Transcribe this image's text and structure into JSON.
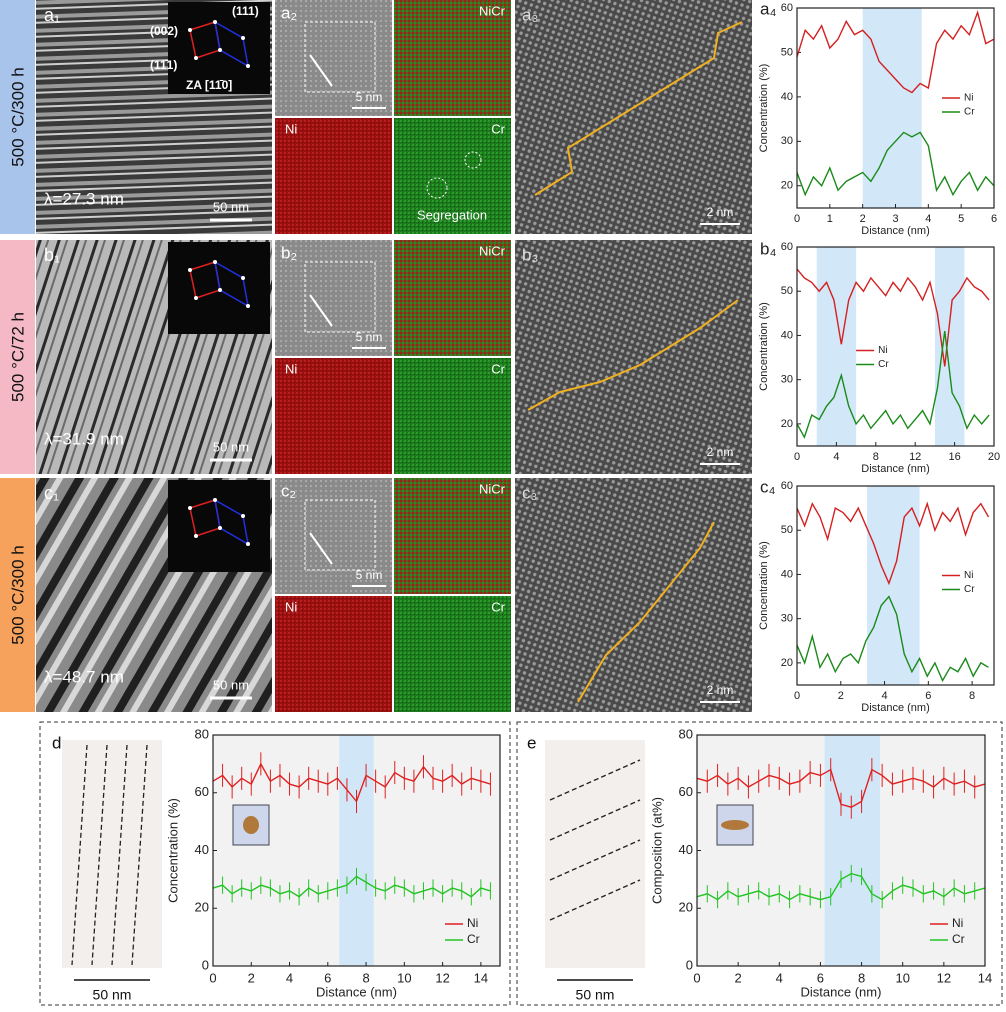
{
  "rows": [
    {
      "condition": "500 °C/300 h",
      "color": "#a9c4ea",
      "p1": {
        "label": "a₁",
        "lambda": "λ=27.3 nm",
        "scale": "50 nm",
        "spots": [
          "(002)",
          "(111)",
          "(11̄1)",
          "ZA [11̄0]"
        ]
      },
      "p2": {
        "label": "a₂",
        "scale": "5 nm",
        "maps": [
          "NiCr",
          "Ni",
          "Cr"
        ],
        "note": "Segregation"
      },
      "p3": {
        "label": "a₃",
        "scale": "2 nm"
      }
    },
    {
      "condition": "500 °C/72 h",
      "color": "#f5b9c6",
      "p1": {
        "label": "b₁",
        "lambda": "λ=31.9 nm",
        "scale": "50 nm"
      },
      "p2": {
        "label": "b₂",
        "scale": "5 nm",
        "maps": [
          "NiCr",
          "Ni",
          "Cr"
        ]
      },
      "p3": {
        "label": "b₃",
        "scale": "2 nm"
      }
    },
    {
      "condition": "500 °C/300 h",
      "color": "#f6a25c",
      "p1": {
        "label": "c₁",
        "lambda": "λ=48.7 nm",
        "scale": "50 nm"
      },
      "p2": {
        "label": "c₂",
        "scale": "5 nm",
        "maps": [
          "NiCr",
          "Ni",
          "Cr"
        ]
      },
      "p3": {
        "label": "c₃",
        "scale": "2 nm"
      }
    }
  ],
  "apt": [
    {
      "label": "d",
      "scale": "50 nm"
    },
    {
      "label": "e",
      "scale": "50 nm"
    }
  ],
  "chart_data": [
    {
      "type": "line",
      "label": "a₄",
      "xlabel": "Distance (nm)",
      "ylabel": "Concentration (%)",
      "xlim": [
        0,
        6
      ],
      "xticks": [
        0,
        1,
        2,
        3,
        4,
        5,
        6
      ],
      "ylim": [
        15,
        60
      ],
      "yticks": [
        20,
        30,
        40,
        50,
        60
      ],
      "shades": [
        [
          2,
          3.8
        ]
      ],
      "legend": "right",
      "x": [
        0,
        0.25,
        0.5,
        0.75,
        1,
        1.25,
        1.5,
        1.75,
        2,
        2.25,
        2.5,
        2.75,
        3,
        3.25,
        3.5,
        3.75,
        4,
        4.25,
        4.5,
        4.75,
        5,
        5.25,
        5.5,
        5.75,
        6
      ],
      "series": [
        {
          "name": "Ni",
          "color": "#d42020",
          "values": [
            49,
            55,
            53,
            56,
            51,
            53,
            57,
            54,
            55,
            53,
            48,
            46,
            44,
            42,
            41,
            43,
            42,
            52,
            55,
            53,
            56,
            54,
            59,
            52,
            53
          ]
        },
        {
          "name": "Cr",
          "color": "#1a8a1a",
          "values": [
            23,
            18,
            22,
            20,
            24,
            19,
            21,
            22,
            23,
            21,
            24,
            28,
            30,
            32,
            31,
            32,
            29,
            19,
            22,
            18,
            21,
            23,
            19,
            22,
            20
          ]
        }
      ]
    },
    {
      "type": "line",
      "label": "b₄",
      "xlabel": "Distance (nm)",
      "ylabel": "Concentration (%)",
      "xlim": [
        0,
        20
      ],
      "xticks": [
        0,
        4,
        8,
        12,
        16,
        20
      ],
      "ylim": [
        15,
        60
      ],
      "yticks": [
        20,
        30,
        40,
        50,
        60
      ],
      "shades": [
        [
          2,
          6
        ],
        [
          14,
          17
        ]
      ],
      "legend": "center",
      "x": [
        0,
        0.75,
        1.5,
        2.25,
        3,
        3.75,
        4.5,
        5.25,
        6,
        6.75,
        7.5,
        8.25,
        9,
        9.75,
        10.5,
        11.25,
        12,
        12.75,
        13.5,
        14.25,
        15,
        15.75,
        16.5,
        17.25,
        18,
        18.75,
        19.5
      ],
      "series": [
        {
          "name": "Ni",
          "color": "#d42020",
          "values": [
            55,
            53,
            52,
            50,
            52,
            48,
            38,
            48,
            52,
            50,
            53,
            51,
            49,
            52,
            50,
            53,
            51,
            48,
            52,
            45,
            33,
            48,
            50,
            53,
            51,
            50,
            48
          ]
        },
        {
          "name": "Cr",
          "color": "#1a8a1a",
          "values": [
            20,
            17,
            22,
            21,
            24,
            26,
            31,
            24,
            20,
            22,
            19,
            21,
            23,
            20,
            22,
            19,
            21,
            23,
            20,
            28,
            41,
            27,
            24,
            19,
            22,
            20,
            22
          ]
        }
      ]
    },
    {
      "type": "line",
      "label": "c₄",
      "xlabel": "Distance (nm)",
      "ylabel": "Concentration (%)",
      "xlim": [
        0,
        9
      ],
      "xticks": [
        0,
        2,
        4,
        6,
        8
      ],
      "ylim": [
        15,
        60
      ],
      "yticks": [
        20,
        30,
        40,
        50,
        60
      ],
      "shades": [
        [
          3.2,
          5.6
        ]
      ],
      "legend": "right",
      "x": [
        0,
        0.35,
        0.7,
        1.05,
        1.4,
        1.75,
        2.1,
        2.45,
        2.8,
        3.15,
        3.5,
        3.85,
        4.2,
        4.55,
        4.9,
        5.25,
        5.6,
        5.95,
        6.3,
        6.65,
        7,
        7.35,
        7.7,
        8.05,
        8.4,
        8.75
      ],
      "series": [
        {
          "name": "Ni",
          "color": "#d42020",
          "values": [
            55,
            51,
            56,
            53,
            48,
            55,
            54,
            52,
            55,
            51,
            47,
            42,
            38,
            43,
            53,
            55,
            51,
            56,
            50,
            54,
            52,
            55,
            49,
            54,
            56,
            53
          ]
        },
        {
          "name": "Cr",
          "color": "#1a8a1a",
          "values": [
            24,
            20,
            26,
            19,
            22,
            18,
            21,
            22,
            20,
            25,
            28,
            33,
            35,
            31,
            22,
            18,
            21,
            17,
            20,
            16,
            19,
            18,
            21,
            17,
            20,
            19
          ]
        }
      ]
    },
    {
      "type": "errorline",
      "label": "d",
      "xlabel": "Distance (nm)",
      "ylabel": "Concentration (%)",
      "xlim": [
        0,
        15
      ],
      "xticks": [
        0,
        2,
        4,
        6,
        8,
        10,
        12,
        14
      ],
      "ylim": [
        0,
        80
      ],
      "yticks": [
        0,
        20,
        40,
        60,
        80
      ],
      "shades": [
        [
          6.6,
          8.4
        ]
      ],
      "legend": "bottom-right",
      "x": [
        0,
        0.5,
        1,
        1.5,
        2,
        2.5,
        3,
        3.5,
        4,
        4.5,
        5,
        5.5,
        6,
        6.5,
        7,
        7.5,
        8,
        8.5,
        9,
        9.5,
        10,
        10.5,
        11,
        11.5,
        12,
        12.5,
        13,
        13.5,
        14,
        14.5
      ],
      "series": [
        {
          "name": "Ni",
          "color": "#e02020",
          "error": 4,
          "values": [
            64,
            66,
            62,
            65,
            63,
            70,
            64,
            66,
            63,
            62,
            65,
            64,
            63,
            65,
            61,
            57,
            66,
            64,
            62,
            67,
            65,
            64,
            69,
            65,
            64,
            66,
            63,
            65,
            64,
            63
          ]
        },
        {
          "name": "Cr",
          "color": "#22c422",
          "error": 3,
          "values": [
            27,
            28,
            25,
            27,
            26,
            28,
            27,
            25,
            26,
            24,
            27,
            25,
            26,
            27,
            28,
            31,
            29,
            27,
            26,
            28,
            27,
            25,
            26,
            27,
            25,
            27,
            26,
            24,
            27,
            26
          ]
        }
      ]
    },
    {
      "type": "errorline",
      "label": "e",
      "xlabel": "Distance (nm)",
      "ylabel": "Composition (at%)",
      "xlim": [
        0,
        14
      ],
      "xticks": [
        0,
        2,
        4,
        6,
        8,
        10,
        12,
        14
      ],
      "ylim": [
        0,
        80
      ],
      "yticks": [
        0,
        20,
        40,
        60,
        80
      ],
      "shades": [
        [
          6.2,
          8.9
        ]
      ],
      "legend": "bottom-right",
      "x": [
        0,
        0.5,
        1,
        1.5,
        2,
        2.5,
        3,
        3.5,
        4,
        4.5,
        5,
        5.5,
        6,
        6.5,
        7,
        7.5,
        8,
        8.5,
        9,
        9.5,
        10,
        10.5,
        11,
        11.5,
        12,
        12.5,
        13,
        13.5,
        14
      ],
      "series": [
        {
          "name": "Ni",
          "color": "#e02020",
          "error": 4,
          "values": [
            65,
            64,
            66,
            63,
            65,
            62,
            64,
            66,
            65,
            63,
            64,
            67,
            66,
            68,
            56,
            55,
            57,
            68,
            66,
            63,
            64,
            65,
            64,
            62,
            65,
            63,
            64,
            62,
            63
          ]
        },
        {
          "name": "Cr",
          "color": "#22c422",
          "error": 3,
          "values": [
            24,
            25,
            23,
            26,
            24,
            25,
            26,
            24,
            25,
            23,
            25,
            24,
            23,
            24,
            30,
            32,
            31,
            25,
            23,
            26,
            28,
            27,
            25,
            26,
            24,
            27,
            25,
            26,
            27
          ]
        }
      ]
    }
  ]
}
